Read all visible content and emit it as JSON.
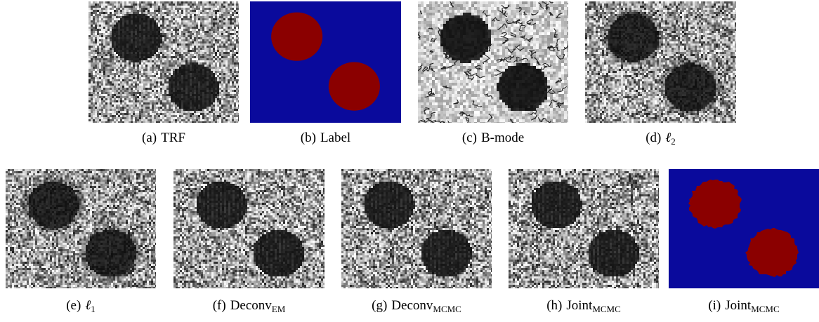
{
  "figure": {
    "panels": [
      {
        "id": "a",
        "tag": "(a)",
        "caption": "TRF",
        "sub": "",
        "kind": "speckle",
        "grain": "fine",
        "texture": "vert"
      },
      {
        "id": "b",
        "tag": "(b)",
        "caption": "Label",
        "sub": "",
        "kind": "label",
        "edge": "smooth"
      },
      {
        "id": "c",
        "tag": "(c)",
        "caption": "B-mode",
        "sub": "",
        "kind": "speckle",
        "grain": "coarse",
        "texture": "bright"
      },
      {
        "id": "d",
        "tag": "(d)",
        "caption": "ℓ",
        "sub": "2",
        "kind": "speckle",
        "grain": "fine",
        "texture": "blur"
      },
      {
        "id": "e",
        "tag": "(e)",
        "caption": "ℓ",
        "sub": "1",
        "kind": "speckle",
        "grain": "fine",
        "texture": "blur"
      },
      {
        "id": "f",
        "tag": "(f)",
        "caption": "Deconv",
        "sub": "EM",
        "kind": "speckle",
        "grain": "fine",
        "texture": "vert"
      },
      {
        "id": "g",
        "tag": "(g)",
        "caption": "Deconv",
        "sub": "MCMC",
        "kind": "speckle",
        "grain": "fine",
        "texture": "vert"
      },
      {
        "id": "h",
        "tag": "(h)",
        "caption": "Joint",
        "sub": "MCMC",
        "kind": "speckle",
        "grain": "fine",
        "texture": "vert"
      },
      {
        "id": "i",
        "tag": "(i)",
        "caption": "Joint",
        "sub": "MCMC",
        "kind": "label",
        "edge": "rough"
      }
    ],
    "colors": {
      "label_background": "#0a0a9c",
      "label_inclusion": "#8b0000"
    }
  }
}
